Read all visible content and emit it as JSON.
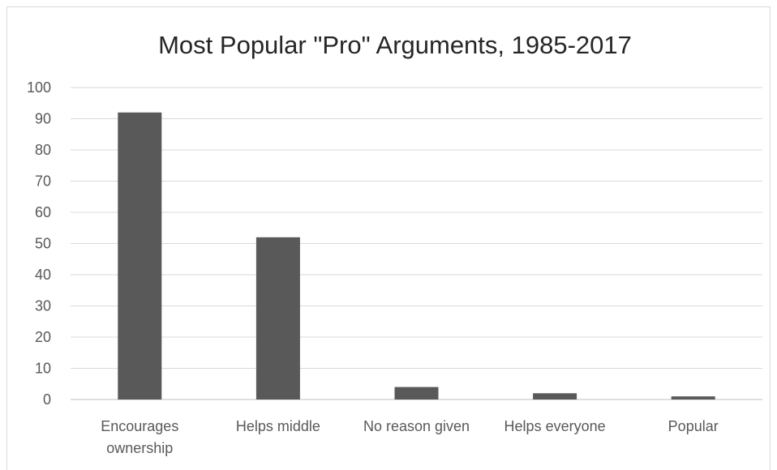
{
  "chart_data": {
    "type": "bar",
    "title": "Most Popular \"Pro\" Arguments, 1985-2017",
    "categories": [
      [
        "Encourages",
        "ownership"
      ],
      [
        "Helps middle"
      ],
      [
        "No reason given"
      ],
      [
        "Helps everyone"
      ],
      [
        "Popular"
      ]
    ],
    "values": [
      92,
      52,
      4,
      2,
      1
    ],
    "ylim": [
      0,
      100
    ],
    "yticks": [
      "0",
      "10",
      "20",
      "30",
      "40",
      "50",
      "60",
      "70",
      "80",
      "90",
      "100"
    ],
    "grid": true,
    "legend": "none",
    "colors": {
      "bar": "#595959",
      "grid": "#d9d9d9",
      "axis": "#bfbfbf"
    }
  }
}
